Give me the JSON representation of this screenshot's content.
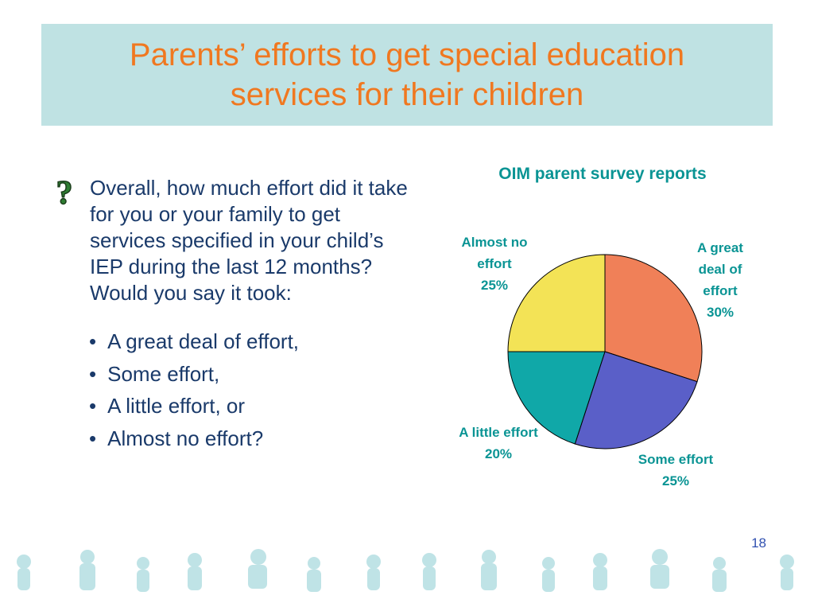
{
  "header": {
    "title": "Parents’ efforts to get special education services for their children"
  },
  "question": "Overall, how much effort did it take for you or your family to get services specified in your child’s IEP during the last 12 months?  Would you say it took:",
  "bullets": [
    "A great deal of effort,",
    "Some effort,",
    "A little effort, or",
    "Almost no effort?"
  ],
  "page_number": "18",
  "chart_data": {
    "type": "pie",
    "title": "OIM parent survey reports",
    "categories": [
      "A great deal of effort",
      "Some effort",
      "A little effort",
      "Almost no effort"
    ],
    "values": [
      30,
      25,
      20,
      25
    ],
    "value_labels": [
      "30%",
      "25%",
      "20%",
      "25%"
    ],
    "colors": [
      "#f08058",
      "#5a5fc8",
      "#10a8a8",
      "#f3e356"
    ]
  }
}
